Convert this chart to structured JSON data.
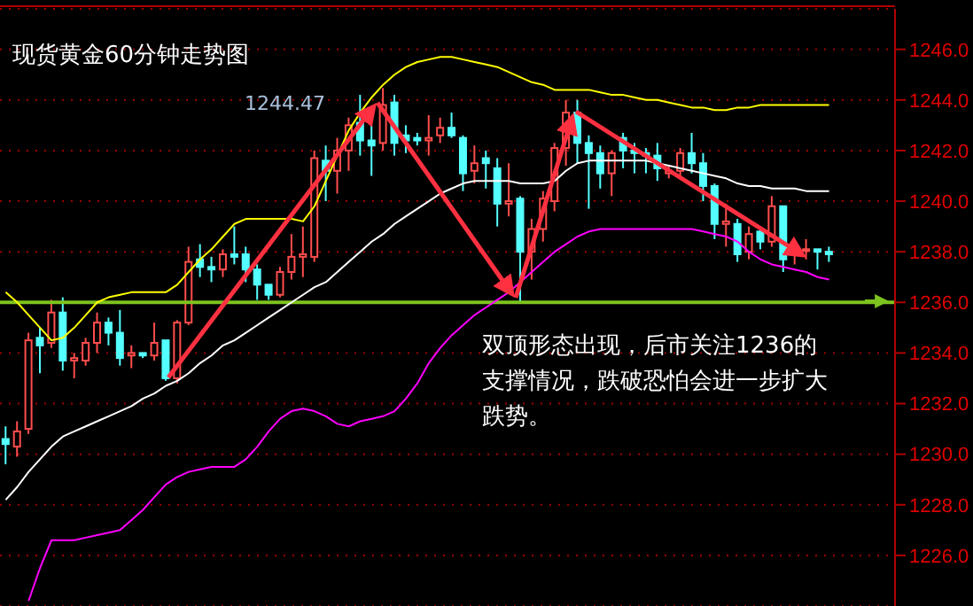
{
  "chart_data": {
    "type": "candlestick",
    "title": "现货黄金60分钟走势图",
    "annotations": [
      "1244.47",
      "双顶形态出现，后市关注1236的支撑情况，跌破恐怕会进一步扩大跌势。"
    ],
    "categories": [
      null,
      null,
      null,
      null,
      null,
      null,
      null,
      null,
      null,
      null,
      null,
      null,
      null,
      null,
      null,
      null,
      null,
      null,
      null,
      null,
      null,
      null,
      null,
      null,
      null,
      null,
      null,
      null,
      null,
      null,
      null,
      null,
      null,
      null,
      null,
      null,
      null,
      null,
      null,
      null,
      null,
      null,
      null,
      null,
      null,
      null,
      null,
      null,
      null,
      null,
      null,
      null,
      null,
      null,
      null,
      null,
      null,
      null,
      null,
      null,
      null,
      null,
      null,
      null,
      null,
      null,
      null,
      null,
      null,
      null,
      null,
      null,
      null
    ],
    "ohlc": [
      [
        1230.6,
        1231.1,
        1229.6,
        1230.4
      ],
      [
        1230.3,
        1231.3,
        1229.9,
        1230.9
      ],
      [
        1231.0,
        1234.8,
        1230.8,
        1234.5
      ],
      [
        1234.6,
        1235.0,
        1233.2,
        1234.3
      ],
      [
        1234.4,
        1236.1,
        1234.2,
        1235.6
      ],
      [
        1235.6,
        1236.2,
        1233.3,
        1233.7
      ],
      [
        1233.7,
        1234.0,
        1233.0,
        1233.8
      ],
      [
        1233.7,
        1234.6,
        1233.5,
        1234.4
      ],
      [
        1234.4,
        1235.6,
        1234.0,
        1235.2
      ],
      [
        1235.2,
        1235.4,
        1234.3,
        1234.8
      ],
      [
        1234.8,
        1235.7,
        1233.5,
        1233.8
      ],
      [
        1233.9,
        1234.3,
        1233.4,
        1234.0
      ],
      [
        1234.0,
        1234.0,
        1233.8,
        1233.9
      ],
      [
        1233.9,
        1235.2,
        1233.7,
        1234.4
      ],
      [
        1234.5,
        1234.5,
        1232.9,
        1233.0
      ],
      [
        1233.0,
        1235.3,
        1232.8,
        1235.2
      ],
      [
        1235.2,
        1238.2,
        1235.1,
        1237.6
      ],
      [
        1237.7,
        1238.3,
        1237.0,
        1237.4
      ],
      [
        1237.4,
        1237.8,
        1236.8,
        1237.3
      ],
      [
        1237.3,
        1238.1,
        1237.0,
        1237.9
      ],
      [
        1237.9,
        1239.0,
        1237.5,
        1237.8
      ],
      [
        1237.9,
        1238.2,
        1236.8,
        1237.3
      ],
      [
        1237.3,
        1237.5,
        1236.1,
        1236.7
      ],
      [
        1236.7,
        1236.7,
        1236.1,
        1236.3
      ],
      [
        1236.3,
        1237.4,
        1236.2,
        1237.2
      ],
      [
        1237.2,
        1238.7,
        1236.9,
        1237.8
      ],
      [
        1237.8,
        1239.0,
        1237.0,
        1237.9
      ],
      [
        1237.8,
        1242.0,
        1237.6,
        1241.7
      ],
      [
        1241.6,
        1242.2,
        1240.0,
        1241.2
      ],
      [
        1241.2,
        1242.5,
        1240.3,
        1242.0
      ],
      [
        1242.0,
        1243.3,
        1241.2,
        1243.0
      ],
      [
        1243.1,
        1244.2,
        1241.8,
        1242.4
      ],
      [
        1242.4,
        1243.0,
        1241.0,
        1242.2
      ],
      [
        1242.3,
        1244.47,
        1242.0,
        1243.8
      ],
      [
        1243.9,
        1244.2,
        1241.8,
        1242.3
      ],
      [
        1242.6,
        1243.0,
        1241.9,
        1242.4
      ],
      [
        1242.5,
        1242.7,
        1242.2,
        1242.4
      ],
      [
        1242.4,
        1243.4,
        1241.8,
        1242.5
      ],
      [
        1242.6,
        1243.3,
        1242.3,
        1242.9
      ],
      [
        1242.9,
        1243.5,
        1242.5,
        1242.6
      ],
      [
        1242.5,
        1242.6,
        1240.4,
        1241.1
      ],
      [
        1241.2,
        1242.2,
        1240.7,
        1241.5
      ],
      [
        1241.7,
        1242.0,
        1240.5,
        1241.5
      ],
      [
        1241.3,
        1241.7,
        1239.0,
        1239.9
      ],
      [
        1239.9,
        1241.5,
        1239.4,
        1240.0
      ],
      [
        1240.1,
        1240.2,
        1236.0,
        1238.0
      ],
      [
        1238.0,
        1239.3,
        1236.9,
        1238.9
      ],
      [
        1238.9,
        1240.4,
        1238.4,
        1240.1
      ],
      [
        1240.0,
        1242.3,
        1239.6,
        1242.1
      ],
      [
        1242.1,
        1244.0,
        1241.4,
        1243.5
      ],
      [
        1243.5,
        1244.0,
        1241.5,
        1242.3
      ],
      [
        1242.3,
        1242.6,
        1239.7,
        1241.9
      ],
      [
        1241.9,
        1242.2,
        1240.5,
        1241.1
      ],
      [
        1241.1,
        1242.0,
        1240.2,
        1241.9
      ],
      [
        1242.5,
        1242.7,
        1241.3,
        1242.0
      ],
      [
        1242.0,
        1242.3,
        1241.1,
        1241.9
      ],
      [
        1241.9,
        1242.1,
        1241.1,
        1241.8
      ],
      [
        1241.8,
        1242.3,
        1240.8,
        1241.3
      ],
      [
        1241.1,
        1241.4,
        1240.9,
        1241.2
      ],
      [
        1241.2,
        1242.1,
        1240.9,
        1241.9
      ],
      [
        1241.9,
        1242.7,
        1241.1,
        1241.5
      ],
      [
        1241.5,
        1241.9,
        1240.0,
        1240.6
      ],
      [
        1240.6,
        1240.7,
        1238.5,
        1239.1
      ],
      [
        1239.1,
        1239.9,
        1238.2,
        1239.2
      ],
      [
        1239.1,
        1239.3,
        1237.6,
        1237.9
      ],
      [
        1238.0,
        1239.0,
        1237.7,
        1238.7
      ],
      [
        1238.8,
        1239.0,
        1238.1,
        1238.4
      ],
      [
        1238.4,
        1240.2,
        1238.2,
        1239.8
      ],
      [
        1239.8,
        1239.8,
        1237.2,
        1237.7
      ],
      [
        1237.9,
        1238.5,
        1237.5,
        1238.1
      ],
      [
        1238.1,
        1238.5,
        1237.7,
        1238.1
      ],
      [
        1238.1,
        1238.1,
        1237.3,
        1238.0
      ],
      [
        1238.0,
        1238.2,
        1237.6,
        1237.9
      ]
    ],
    "series": [
      {
        "type": "line",
        "color": "#ffff00",
        "values": [
          1236.4,
          1236.0,
          1235.5,
          1235.0,
          1234.5,
          1234.6,
          1235.0,
          1235.5,
          1236.0,
          1236.2,
          1236.3,
          1236.4,
          1236.4,
          1236.4,
          1236.4,
          1236.7,
          1237.2,
          1237.7,
          1238.1,
          1238.6,
          1239.1,
          1239.3,
          1239.3,
          1239.3,
          1239.3,
          1239.3,
          1239.2,
          1239.8,
          1240.8,
          1241.8,
          1242.8,
          1243.5,
          1244.1,
          1244.6,
          1245.0,
          1245.3,
          1245.5,
          1245.6,
          1245.7,
          1245.7,
          1245.6,
          1245.5,
          1245.4,
          1245.3,
          1245.1,
          1244.9,
          1244.7,
          1244.6,
          1244.4,
          1244.4,
          1244.4,
          1244.4,
          1244.3,
          1244.2,
          1244.2,
          1244.1,
          1244.0,
          1244.0,
          1243.9,
          1243.8,
          1243.7,
          1243.7,
          1243.6,
          1243.6,
          1243.7,
          1243.7,
          1243.8,
          1243.8,
          1243.8,
          1243.8,
          1243.8,
          1243.8,
          1243.8
        ]
      },
      {
        "type": "line",
        "color": "#ffffff",
        "values": [
          1228.2,
          1228.7,
          1229.3,
          1229.8,
          1230.3,
          1230.7,
          1230.9,
          1231.1,
          1231.3,
          1231.5,
          1231.7,
          1231.9,
          1232.2,
          1232.4,
          1232.7,
          1232.9,
          1233.2,
          1233.6,
          1233.9,
          1234.3,
          1234.5,
          1234.8,
          1235.1,
          1235.4,
          1235.7,
          1236.0,
          1236.3,
          1236.6,
          1236.8,
          1237.2,
          1237.6,
          1238.0,
          1238.4,
          1238.7,
          1239.1,
          1239.4,
          1239.7,
          1240.0,
          1240.3,
          1240.5,
          1240.7,
          1240.8,
          1240.8,
          1240.8,
          1240.8,
          1240.7,
          1240.7,
          1240.7,
          1240.8,
          1241.2,
          1241.5,
          1241.6,
          1241.6,
          1241.6,
          1241.6,
          1241.6,
          1241.6,
          1241.5,
          1241.4,
          1241.3,
          1241.2,
          1241.1,
          1241.0,
          1240.9,
          1240.7,
          1240.6,
          1240.6,
          1240.5,
          1240.5,
          1240.5,
          1240.4,
          1240.4,
          1240.4
        ]
      },
      {
        "type": "line",
        "color": "#ff00ff",
        "values": [
          null,
          null,
          1224.2,
          1225.5,
          1226.6,
          1226.6,
          1226.6,
          1226.7,
          1226.8,
          1226.9,
          1227.0,
          1227.4,
          1227.8,
          1228.3,
          1228.8,
          1229.1,
          1229.3,
          1229.4,
          1229.5,
          1229.5,
          1229.5,
          1229.8,
          1230.3,
          1230.9,
          1231.4,
          1231.7,
          1231.8,
          1231.7,
          1231.5,
          1231.2,
          1231.1,
          1231.3,
          1231.4,
          1231.5,
          1231.7,
          1232.2,
          1232.8,
          1233.6,
          1234.2,
          1234.7,
          1235.1,
          1235.5,
          1235.8,
          1236.1,
          1236.4,
          1236.8,
          1237.2,
          1237.6,
          1238.0,
          1238.3,
          1238.6,
          1238.8,
          1238.9,
          1238.9,
          1238.9,
          1238.9,
          1238.9,
          1238.9,
          1238.9,
          1238.9,
          1238.9,
          1238.8,
          1238.7,
          1238.6,
          1238.4,
          1238.0,
          1237.7,
          1237.5,
          1237.4,
          1237.3,
          1237.2,
          1237.0,
          1236.9
        ]
      }
    ],
    "ylim": [
      1224,
      1247.6
    ],
    "yticks": [
      {
        "value": 1226,
        "label": "1226.0"
      },
      {
        "value": 1228,
        "label": "1228.0"
      },
      {
        "value": 1230,
        "label": "1230.0"
      },
      {
        "value": 1232,
        "label": "1232.0"
      },
      {
        "value": 1234,
        "label": "1234.0"
      },
      {
        "value": 1236,
        "label": "1236.0"
      },
      {
        "value": 1238,
        "label": "1238.0"
      },
      {
        "value": 1240,
        "label": "1240.0"
      },
      {
        "value": 1242,
        "label": "1242.0"
      },
      {
        "value": 1244,
        "label": "1244.0"
      },
      {
        "value": 1246,
        "label": "1246.0"
      }
    ],
    "grid": "y",
    "ref_lines": [
      {
        "axis": "y",
        "value": 1236,
        "color": "#7dc41f"
      }
    ],
    "tick_labels": "y"
  }
}
